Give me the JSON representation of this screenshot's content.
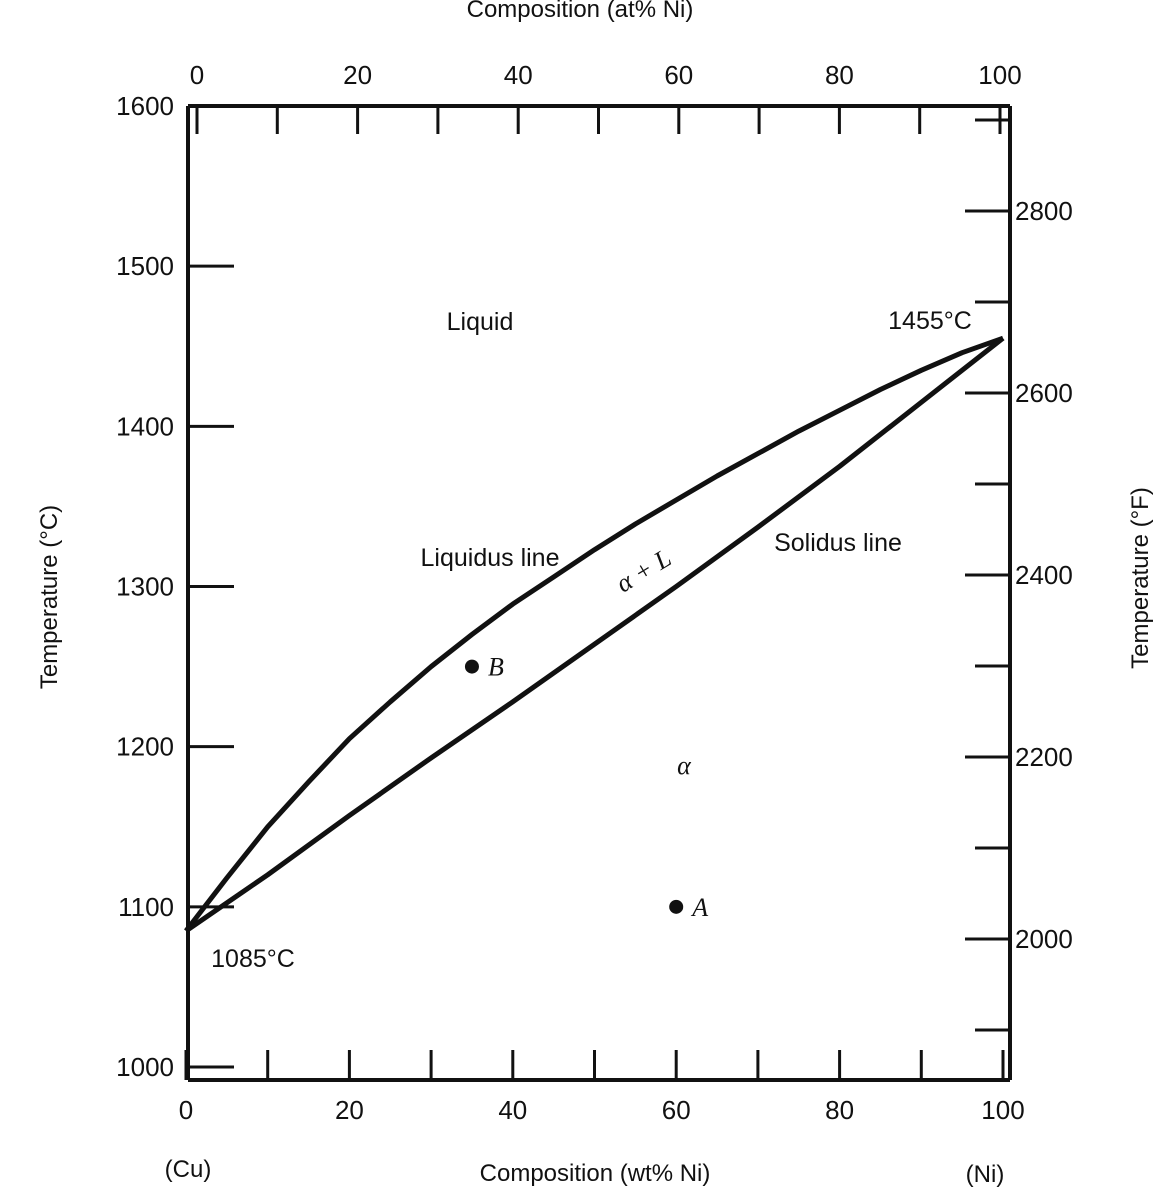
{
  "chart_data": {
    "type": "line",
    "title": "",
    "xlabel": "Composition (wt% Ni)",
    "xlabel_top": "Composition (at% Ni)",
    "ylabel": "Temperature (°C)",
    "ylabel_right": "Temperature (°F)",
    "xlim": [
      0,
      100
    ],
    "ylim": [
      1000,
      1600
    ],
    "y2lim": [
      1832,
      2912
    ],
    "x_ticks": [
      0,
      20,
      40,
      60,
      80,
      100
    ],
    "x_ticks_minor": [
      10,
      30,
      50,
      70,
      90
    ],
    "x_top_ticks": [
      0,
      20,
      40,
      60,
      80,
      100
    ],
    "x_top_ticks_minor": [
      10,
      30,
      50,
      70,
      90
    ],
    "y_ticks": [
      1000,
      1100,
      1200,
      1300,
      1400,
      1500,
      1600
    ],
    "y2_ticks": [
      2000,
      2200,
      2400,
      2600,
      2800
    ],
    "y2_ticks_minor": [
      1900,
      2100,
      2300,
      2500,
      2700,
      2900
    ],
    "end_labels": {
      "left": "(Cu)",
      "right": "(Ni)"
    },
    "series": [
      {
        "name": "Liquidus line",
        "x": [
          0,
          5,
          10,
          15,
          20,
          25,
          30,
          35,
          40,
          45,
          50,
          55,
          60,
          65,
          70,
          75,
          80,
          85,
          90,
          95,
          100
        ],
        "y": [
          1085,
          1118,
          1150,
          1178,
          1205,
          1228,
          1250,
          1270,
          1289,
          1306,
          1323,
          1339,
          1354,
          1369,
          1383,
          1397,
          1410,
          1423,
          1435,
          1446,
          1455
        ]
      },
      {
        "name": "Solidus line",
        "x": [
          0,
          10,
          20,
          30,
          40,
          50,
          60,
          70,
          80,
          90,
          100
        ],
        "y": [
          1085,
          1120,
          1157,
          1193,
          1228,
          1264,
          1300,
          1337,
          1375,
          1415,
          1455
        ]
      }
    ],
    "points": [
      {
        "label": "B",
        "x": 35,
        "y": 1250
      },
      {
        "label": "A",
        "x": 60,
        "y": 1100
      }
    ],
    "annotations": {
      "melting_cu": "1085°C",
      "melting_ni": "1455°C",
      "region_liquid": "Liquid",
      "region_two_phase": "α + L",
      "region_alpha": "α",
      "liquidus_label": "Liquidus line",
      "solidus_label": "Solidus line"
    }
  }
}
